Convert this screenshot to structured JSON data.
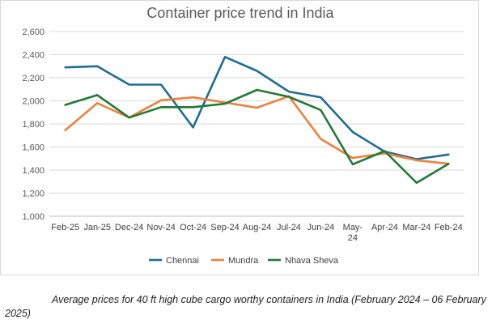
{
  "chart_data": {
    "type": "line",
    "title": "Container price trend in India",
    "xlabel": "",
    "ylabel": "",
    "ylim": [
      1000,
      2600
    ],
    "yticks": [
      1000,
      1200,
      1400,
      1600,
      1800,
      2000,
      2200,
      2400,
      2600
    ],
    "ytick_labels": [
      "1,000",
      "1,200",
      "1,400",
      "1,600",
      "1,800",
      "2,000",
      "2,200",
      "2,400",
      "2,600"
    ],
    "grid": true,
    "legend_position": "bottom",
    "categories": [
      "Feb-25",
      "Jan-25",
      "Dec-24",
      "Nov-24",
      "Oct-24",
      "Sep-24",
      "Aug-24",
      "Jul-24",
      "Jun-24",
      "May-24",
      "Apr-24",
      "Mar-24",
      "Feb-24"
    ],
    "category_lines": [
      [
        "Feb-25"
      ],
      [
        "Jan-25"
      ],
      [
        "Dec-24"
      ],
      [
        "Nov-24"
      ],
      [
        "Oct-24"
      ],
      [
        "Sep-24"
      ],
      [
        "Aug-24"
      ],
      [
        "Jul-24"
      ],
      [
        "Jun-24"
      ],
      [
        "May-",
        "24"
      ],
      [
        "Apr-24"
      ],
      [
        "Mar-24"
      ],
      [
        "Feb-24"
      ]
    ],
    "series": [
      {
        "name": "Chennai",
        "color": "#1f6e93",
        "values": [
          2290,
          2300,
          2140,
          2140,
          1770,
          2380,
          2260,
          2080,
          2030,
          1730,
          1560,
          1495,
          1535
        ]
      },
      {
        "name": "Mundra",
        "color": "#f07f3c",
        "values": [
          1745,
          1980,
          1855,
          2005,
          2030,
          1985,
          1940,
          2040,
          1670,
          1505,
          1545,
          1485,
          1455
        ]
      },
      {
        "name": "Nhava Sheva",
        "color": "#217a36",
        "values": [
          1965,
          2050,
          1855,
          1945,
          1945,
          1975,
          2095,
          2035,
          1920,
          1450,
          1565,
          1290,
          1455
        ]
      }
    ]
  },
  "caption": "Average prices for 40 ft high cube cargo worthy containers in India (February 2024 – 06 February 2025)"
}
